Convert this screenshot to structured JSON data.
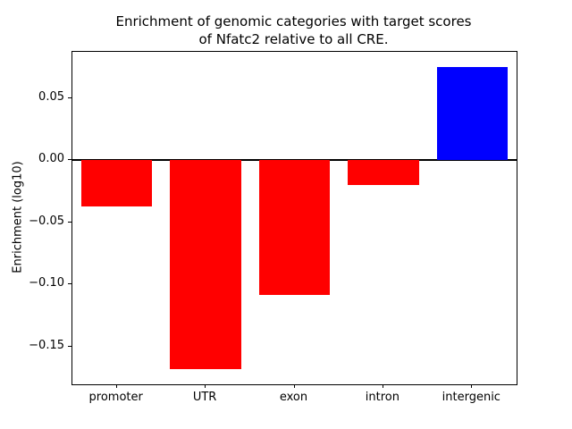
{
  "chart_data": {
    "type": "bar",
    "title": "Enrichment of genomic categories with target scores\nof Nfatc2 relative to all CRE.",
    "categories": [
      "promoter",
      "UTR",
      "exon",
      "intron",
      "intergenic"
    ],
    "values": [
      -0.037,
      -0.168,
      -0.108,
      -0.02,
      0.075
    ],
    "bar_colors": [
      "#ff0000",
      "#ff0000",
      "#ff0000",
      "#ff0000",
      "#0000ff"
    ],
    "negative_color": "#ff0000",
    "positive_color": "#0000ff",
    "xlabel": "",
    "ylabel": "Enrichment (log10)",
    "ylim": [
      -0.1802,
      0.0872
    ],
    "yticks": [
      0.05,
      0.0,
      -0.05,
      -0.1,
      -0.15
    ],
    "grid": false,
    "zero_line": true,
    "legend": "none",
    "background": "#ffffff"
  }
}
